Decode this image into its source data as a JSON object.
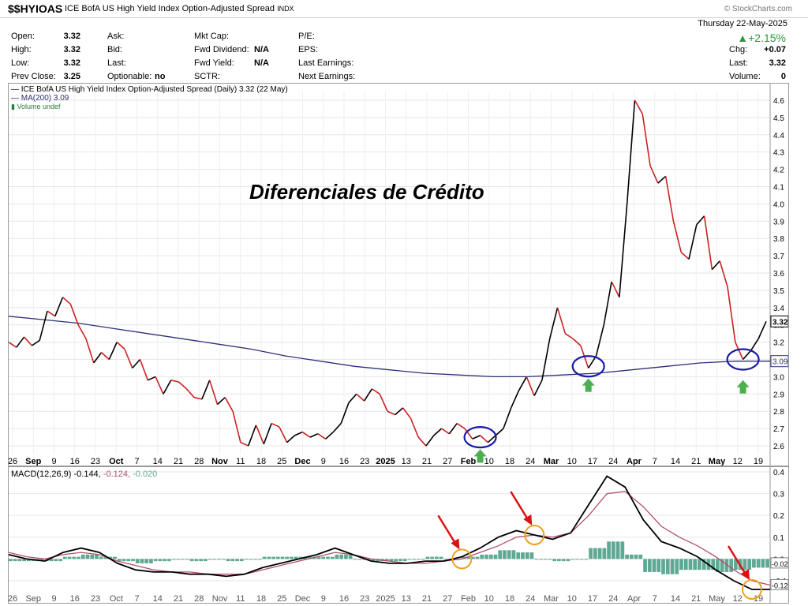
{
  "header": {
    "symbol": "$$HYIOAS",
    "name": "ICE BofA US High Yield Index Option-Adjusted Spread",
    "exchange": "INDX",
    "brand": "© StockCharts.com",
    "date": "Thursday  22-May-2025"
  },
  "quote": {
    "open_label": "Open:",
    "open": "3.32",
    "high_label": "High:",
    "high": "3.32",
    "low_label": "Low:",
    "low": "3.32",
    "prev_label": "Prev Close:",
    "prev": "3.25",
    "ask_label": "Ask:",
    "bid_label": "Bid:",
    "last_label": "Last:",
    "optionable_label": "Optionable:",
    "optionable": "no",
    "mktcap_label": "Mkt Cap:",
    "fwd_div_label": "Fwd Dividend:",
    "fwd_div": "N/A",
    "fwd_yield_label": "Fwd Yield:",
    "fwd_yield": "N/A",
    "sctr_label": "SCTR:",
    "pe_label": "P/E:",
    "eps_label": "EPS:",
    "last_earn_label": "Last Earnings:",
    "next_earn_label": "Next Earnings:",
    "pct_change": "▲+2.15%",
    "chg_label": "Chg:",
    "chg": "+0.07",
    "last2_label": "Last:",
    "last2": "3.32",
    "volume_label": "Volume:",
    "volume": "0"
  },
  "price_legend": {
    "main": "ICE BofA US High Yield Index Option-Adjusted Spread (Daily) 3.32 (22 May)",
    "ma": "MA(200) 3.09",
    "volume": "Volume undef"
  },
  "macd_legend": {
    "label": "MACD(12,26,9)",
    "macd": "-0.144,",
    "signal": "-0.124,",
    "hist": "-0.020"
  },
  "colors": {
    "up": "#000000",
    "down": "#cc2222",
    "ma": "#2d2f7a",
    "macd": "#000000",
    "signal": "#b0506a",
    "hist": "#5fa894",
    "circle_blue": "#1a1aa8",
    "circle_orange": "#f0a020",
    "arrow_green": "#4caf50",
    "arrow_red": "#dd1111"
  },
  "chart_data": [
    {
      "type": "line",
      "title": "Diferenciales de Crédito",
      "ylim": [
        2.55,
        4.65
      ],
      "y_ticks": [
        "4.6",
        "4.5",
        "4.4",
        "4.3",
        "4.2",
        "4.1",
        "4.0",
        "3.9",
        "3.8",
        "3.7",
        "3.6",
        "3.5",
        "3.4",
        "3.3",
        "3.2",
        "3.1",
        "3.0",
        "2.9",
        "2.8",
        "2.7",
        "2.6"
      ],
      "last_value_label": "3.32",
      "ma_value_label": "3.09",
      "x_ticks": [
        "26",
        "Sep",
        "9",
        "16",
        "23",
        "Oct",
        "7",
        "14",
        "21",
        "28",
        "Nov",
        "11",
        "18",
        "25",
        "Dec",
        "9",
        "16",
        "23",
        "2025",
        "13",
        "21",
        "27",
        "Feb",
        "10",
        "18",
        "24",
        "Mar",
        "10",
        "17",
        "24",
        "Apr",
        "7",
        "14",
        "21",
        "May",
        "12",
        "19"
      ],
      "series": [
        {
          "name": "ICE BofA US High Yield Index Option-Adjusted Spread",
          "values": [
            3.2,
            3.17,
            3.23,
            3.18,
            3.21,
            3.38,
            3.35,
            3.46,
            3.42,
            3.3,
            3.22,
            3.08,
            3.14,
            3.1,
            3.2,
            3.16,
            3.05,
            3.1,
            2.98,
            3.0,
            2.9,
            2.98,
            2.97,
            2.93,
            2.88,
            2.87,
            2.98,
            2.84,
            2.88,
            2.8,
            2.62,
            2.6,
            2.72,
            2.61,
            2.73,
            2.71,
            2.62,
            2.66,
            2.68,
            2.65,
            2.67,
            2.64,
            2.68,
            2.73,
            2.85,
            2.9,
            2.86,
            2.93,
            2.9,
            2.8,
            2.78,
            2.82,
            2.76,
            2.65,
            2.6,
            2.66,
            2.7,
            2.67,
            2.73,
            2.7,
            2.64,
            2.66,
            2.62,
            2.66,
            2.7,
            2.82,
            2.92,
            3.0,
            2.89,
            2.98,
            3.22,
            3.4,
            3.25,
            3.22,
            3.18,
            3.05,
            3.12,
            3.3,
            3.55,
            3.46,
            4.0,
            4.6,
            4.52,
            4.22,
            4.12,
            4.16,
            3.9,
            3.72,
            3.68,
            3.88,
            3.93,
            3.62,
            3.67,
            3.52,
            3.2,
            3.1,
            3.15,
            3.22,
            3.32
          ]
        },
        {
          "name": "MA(200)",
          "values": [
            3.35,
            3.33,
            3.31,
            3.28,
            3.25,
            3.22,
            3.19,
            3.16,
            3.12,
            3.09,
            3.06,
            3.04,
            3.02,
            3.01,
            3.0,
            3.0,
            3.01,
            3.02,
            3.04,
            3.06,
            3.08,
            3.09,
            3.09
          ]
        }
      ]
    },
    {
      "type": "line",
      "title": "MACD(12,26,9)",
      "ylim": [
        -0.14,
        0.4
      ],
      "y_ticks": [
        "0.4",
        "0.3",
        "0.2",
        "0.1",
        "0.0",
        "-0.1"
      ],
      "last_value_labels": [
        "-0.02",
        "-0.12"
      ],
      "series": [
        {
          "name": "MACD",
          "values": [
            0.02,
            0.0,
            -0.01,
            0.03,
            0.05,
            0.03,
            -0.02,
            -0.05,
            -0.06,
            -0.06,
            -0.07,
            -0.07,
            -0.08,
            -0.07,
            -0.04,
            -0.02,
            0.0,
            0.02,
            0.05,
            0.02,
            -0.01,
            -0.02,
            -0.02,
            -0.01,
            -0.01,
            0.01,
            0.05,
            0.1,
            0.13,
            0.11,
            0.09,
            0.12,
            0.25,
            0.38,
            0.33,
            0.18,
            0.08,
            0.05,
            0.01,
            -0.05,
            -0.1,
            -0.14,
            -0.14
          ]
        },
        {
          "name": "Signal",
          "values": [
            0.03,
            0.01,
            0.0,
            0.02,
            0.03,
            0.02,
            -0.01,
            -0.03,
            -0.05,
            -0.06,
            -0.06,
            -0.07,
            -0.07,
            -0.07,
            -0.05,
            -0.03,
            -0.01,
            0.01,
            0.03,
            0.02,
            0.0,
            -0.01,
            -0.02,
            -0.02,
            -0.01,
            0.0,
            0.03,
            0.06,
            0.1,
            0.11,
            0.1,
            0.12,
            0.2,
            0.3,
            0.31,
            0.24,
            0.15,
            0.1,
            0.06,
            0.01,
            -0.05,
            -0.1,
            -0.12
          ]
        }
      ]
    }
  ]
}
